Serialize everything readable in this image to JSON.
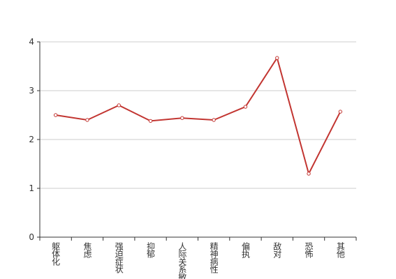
{
  "chart_data": {
    "type": "line",
    "categories": [
      "躯体化",
      "焦虑",
      "强迫症状",
      "抑郁",
      "人际关系敏感",
      "精神病性",
      "偏执",
      "敌对",
      "恐怖",
      "其他"
    ],
    "series": [
      {
        "color": "#c23531",
        "values": [
          2.5,
          2.4,
          2.7,
          2.38,
          2.44,
          2.4,
          2.67,
          3.67,
          1.3,
          2.57
        ]
      }
    ],
    "ylim": [
      0,
      4
    ],
    "yticks": [
      0,
      1,
      2,
      3,
      4
    ],
    "grid": true
  }
}
